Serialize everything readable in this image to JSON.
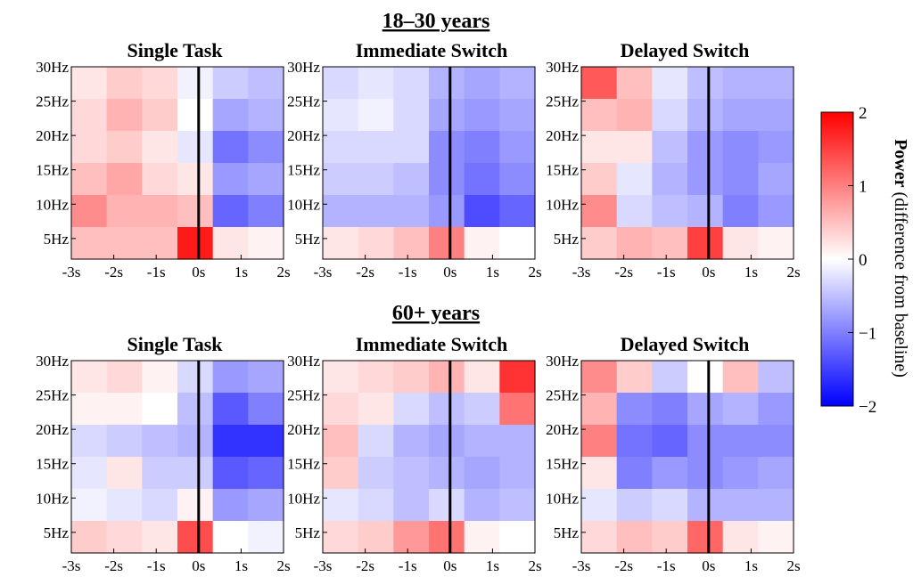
{
  "figure": {
    "rows": [
      {
        "title": "18–30 years",
        "panels": [
          {
            "title": "Single Task"
          },
          {
            "title": "Immediate Switch"
          },
          {
            "title": "Delayed Switch"
          }
        ]
      },
      {
        "title": "60+ years",
        "panels": [
          {
            "title": "Single Task"
          },
          {
            "title": "Immediate Switch"
          },
          {
            "title": "Delayed Switch"
          }
        ]
      }
    ],
    "x_ticks": [
      "-3s",
      "-2s",
      "-1s",
      "0s",
      "1s",
      "2s"
    ],
    "y_ticks": [
      "30Hz",
      "25Hz",
      "20Hz",
      "15Hz",
      "10Hz",
      "5Hz"
    ],
    "colorbar": {
      "ticks": [
        "2",
        "1",
        "0",
        "−1",
        "−2"
      ],
      "label_bold": "Power",
      "label_rest": " (difference from baseline)"
    },
    "colors": {
      "max": "#ff0000",
      "zero": "#ffffff",
      "min": "#0000ff",
      "event_line": "#000000"
    }
  },
  "chart_data": {
    "type": "heatmap",
    "x_range_s": [
      -3,
      2
    ],
    "y_range_hz": [
      2,
      30
    ],
    "color_range": [
      -2,
      2
    ],
    "colormap": "blue-white-red",
    "event_time_s": 0,
    "freqs_hz": [
      30,
      25,
      20,
      15,
      10,
      5
    ],
    "times_s": [
      -3,
      -2,
      -1,
      0,
      1,
      2
    ],
    "panels": [
      {
        "row": "18–30 years",
        "condition": "Single Task",
        "values": [
          [
            0.2,
            0.4,
            0.3,
            -0.1,
            -0.4,
            -0.5
          ],
          [
            0.3,
            0.6,
            0.4,
            0.0,
            -0.7,
            -0.6
          ],
          [
            0.3,
            0.4,
            0.2,
            -0.2,
            -1.1,
            -0.9
          ],
          [
            0.5,
            0.7,
            0.3,
            0.2,
            -0.8,
            -0.7
          ],
          [
            0.9,
            0.6,
            0.6,
            0.5,
            -1.2,
            -1.0
          ],
          [
            0.5,
            0.5,
            0.5,
            1.8,
            0.2,
            0.1
          ]
        ]
      },
      {
        "row": "18–30 years",
        "condition": "Immediate Switch",
        "values": [
          [
            -0.3,
            -0.2,
            -0.3,
            -0.6,
            -0.7,
            -0.6
          ],
          [
            -0.2,
            -0.1,
            -0.3,
            -0.7,
            -0.8,
            -0.7
          ],
          [
            -0.3,
            -0.3,
            -0.3,
            -0.9,
            -1.0,
            -0.8
          ],
          [
            -0.4,
            -0.4,
            -0.5,
            -0.9,
            -1.1,
            -0.9
          ],
          [
            -0.6,
            -0.6,
            -0.6,
            -0.8,
            -1.4,
            -1.2
          ],
          [
            0.2,
            0.3,
            0.5,
            1.0,
            0.1,
            0.0
          ]
        ]
      },
      {
        "row": "18–30 years",
        "condition": "Delayed Switch",
        "values": [
          [
            1.3,
            0.5,
            -0.2,
            -0.5,
            -0.6,
            -0.6
          ],
          [
            0.5,
            0.6,
            -0.3,
            -0.6,
            -0.7,
            -0.7
          ],
          [
            0.2,
            0.2,
            -0.5,
            -0.8,
            -0.9,
            -0.8
          ],
          [
            0.4,
            -0.2,
            -0.6,
            -0.8,
            -0.9,
            -0.7
          ],
          [
            0.9,
            -0.3,
            -0.5,
            -0.6,
            -1.0,
            -0.8
          ],
          [
            0.4,
            0.6,
            0.5,
            1.5,
            0.2,
            0.1
          ]
        ]
      },
      {
        "row": "60+ years",
        "condition": "Single Task",
        "values": [
          [
            0.2,
            0.3,
            0.1,
            -0.3,
            -0.8,
            -0.7
          ],
          [
            0.1,
            0.1,
            0.0,
            -0.5,
            -1.3,
            -1.0
          ],
          [
            -0.3,
            -0.4,
            -0.5,
            -0.6,
            -1.6,
            -1.6
          ],
          [
            -0.2,
            0.2,
            -0.4,
            -0.4,
            -1.3,
            -1.2
          ],
          [
            -0.1,
            -0.2,
            -0.3,
            0.1,
            -0.8,
            -0.7
          ],
          [
            0.4,
            0.3,
            0.2,
            1.4,
            0.0,
            -0.1
          ]
        ]
      },
      {
        "row": "60+ years",
        "condition": "Immediate Switch",
        "values": [
          [
            0.2,
            0.3,
            0.4,
            0.6,
            0.2,
            1.6
          ],
          [
            0.3,
            0.2,
            -0.3,
            -0.5,
            -0.4,
            1.1
          ],
          [
            0.5,
            -0.3,
            -0.6,
            -0.7,
            -0.6,
            -0.6
          ],
          [
            0.4,
            -0.4,
            -0.5,
            -0.6,
            -0.7,
            -0.6
          ],
          [
            -0.2,
            -0.3,
            -0.5,
            -0.3,
            -0.6,
            -0.5
          ],
          [
            0.3,
            0.4,
            0.8,
            1.1,
            0.1,
            0.0
          ]
        ]
      },
      {
        "row": "60+ years",
        "condition": "Delayed Switch",
        "values": [
          [
            0.9,
            0.4,
            -0.4,
            0.0,
            0.5,
            -0.5
          ],
          [
            0.6,
            -0.9,
            -1.0,
            -0.7,
            -0.6,
            -0.8
          ],
          [
            1.0,
            -1.1,
            -1.2,
            -0.9,
            -0.9,
            -0.9
          ],
          [
            0.2,
            -1.0,
            -0.8,
            -0.9,
            -0.8,
            -0.7
          ],
          [
            -0.2,
            -0.4,
            -0.3,
            -0.6,
            -0.6,
            -0.6
          ],
          [
            0.3,
            0.5,
            0.4,
            1.2,
            0.2,
            0.1
          ]
        ]
      }
    ]
  }
}
